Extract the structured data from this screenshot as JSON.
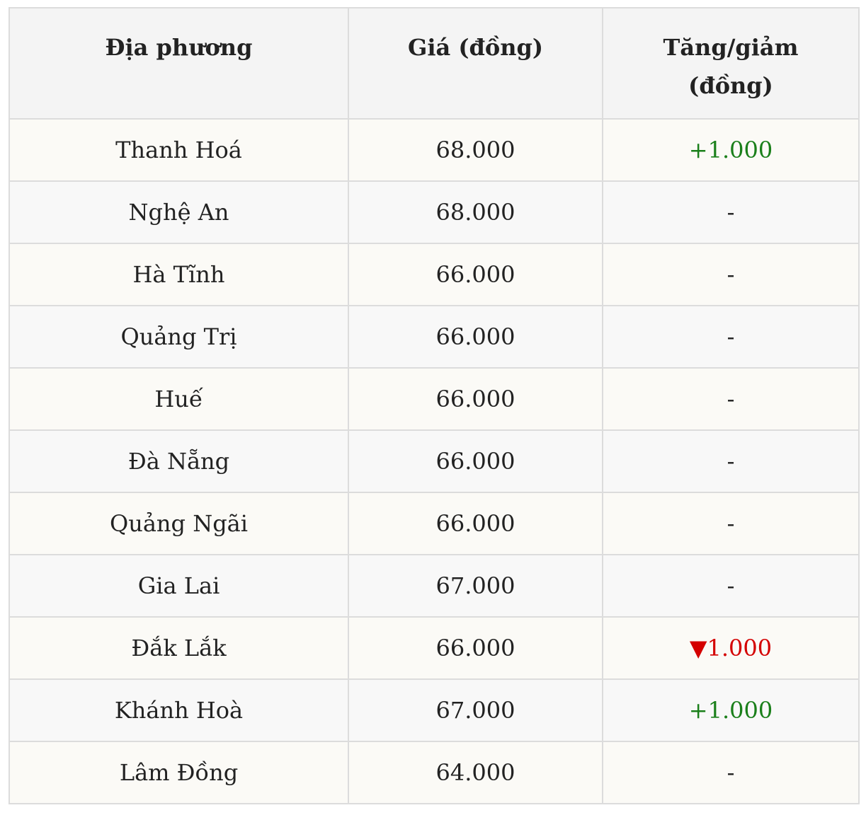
{
  "headers": [
    "Địa phương",
    "Giá (đồng)",
    "Tăng/giảm (đồng)"
  ],
  "colors": {
    "up": "#1a7f1a",
    "down": "#d40000"
  },
  "rows": [
    {
      "region": "Thanh Hoá",
      "price": "68.000",
      "change": "+1.000",
      "trend": "up"
    },
    {
      "region": "Nghệ An",
      "price": "68.000",
      "change": "-",
      "trend": "none"
    },
    {
      "region": "Hà Tĩnh",
      "price": "66.000",
      "change": "-",
      "trend": "none"
    },
    {
      "region": "Quảng Trị",
      "price": "66.000",
      "change": "-",
      "trend": "none"
    },
    {
      "region": "Huế",
      "price": "66.000",
      "change": "-",
      "trend": "none"
    },
    {
      "region": "Đà Nẵng",
      "price": "66.000",
      "change": "-",
      "trend": "none"
    },
    {
      "region": "Quảng Ngãi",
      "price": "66.000",
      "change": "-",
      "trend": "none"
    },
    {
      "region": "Gia Lai",
      "price": "67.000",
      "change": "-",
      "trend": "none"
    },
    {
      "region": "Đắk Lắk",
      "price": "66.000",
      "change": "▼1.000",
      "trend": "down"
    },
    {
      "region": "Khánh Hoà",
      "price": "67.000",
      "change": "+1.000",
      "trend": "up"
    },
    {
      "region": "Lâm Đồng",
      "price": "64.000",
      "change": "-",
      "trend": "none"
    }
  ]
}
